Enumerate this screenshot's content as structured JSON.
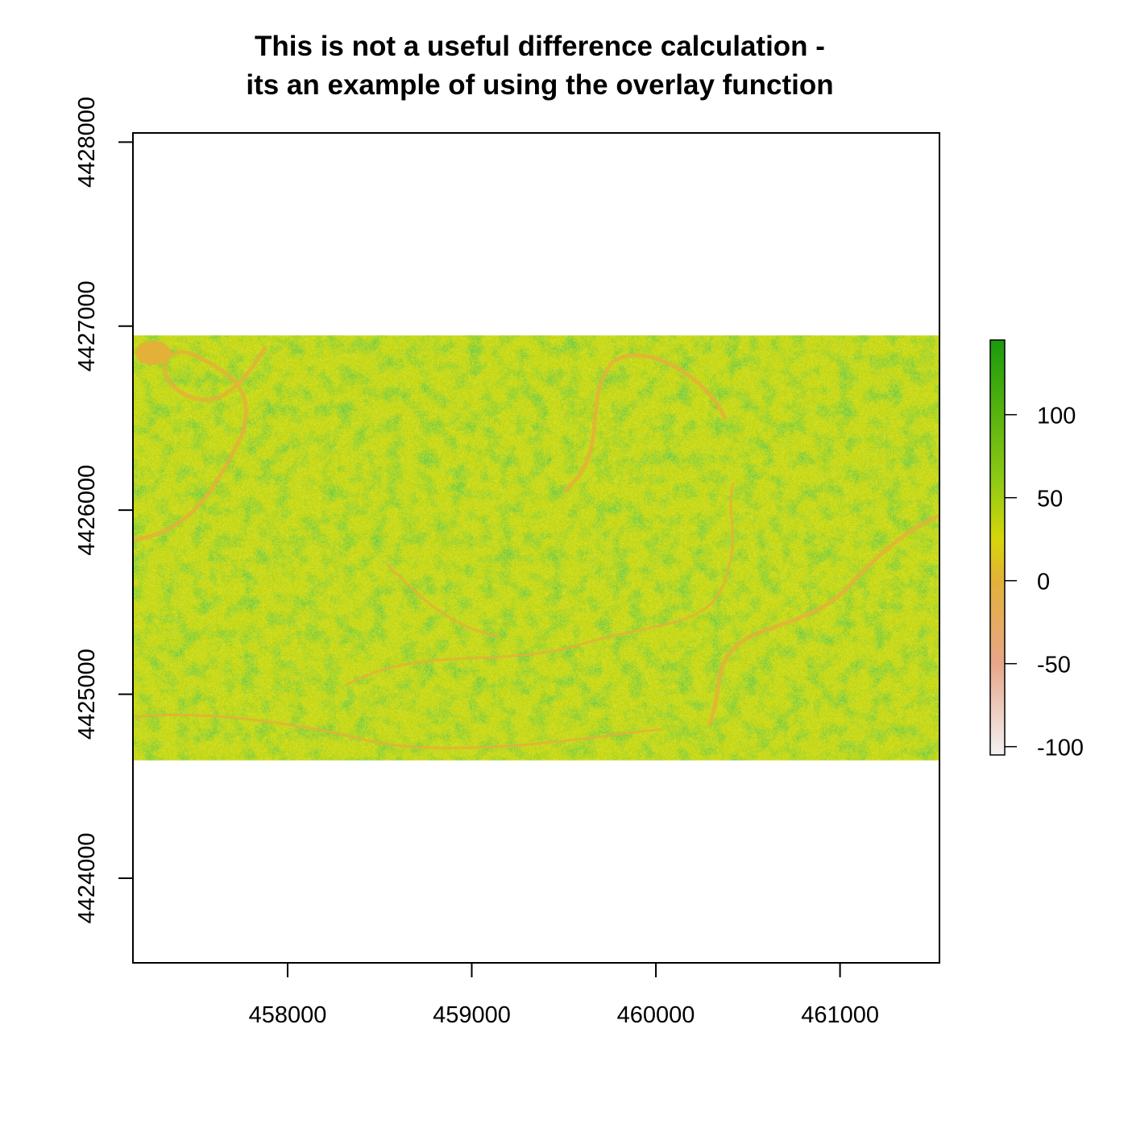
{
  "chart_data": {
    "type": "heatmap",
    "title_lines": [
      "This is not a useful difference calculation -",
      "its an example of using the overlay function"
    ],
    "xlabel": "",
    "ylabel": "",
    "xlim": [
      457160,
      461540
    ],
    "ylim": [
      4423540,
      4428050
    ],
    "raster_extent": {
      "xmin": 457160,
      "xmax": 461540,
      "ymin": 4424640,
      "ymax": 4426950
    },
    "x_ticks": [
      458000,
      459000,
      460000,
      461000
    ],
    "x_tick_labels": [
      "458000",
      "459000",
      "460000",
      "461000"
    ],
    "y_ticks": [
      4424000,
      4425000,
      4426000,
      4427000,
      4428000
    ],
    "y_tick_labels": [
      "4424000",
      "4425000",
      "4426000",
      "4427000",
      "4428000"
    ],
    "value_range": [
      -105,
      145
    ],
    "legend": {
      "placement": "right",
      "ticks": [
        100,
        50,
        0,
        -50,
        -100
      ],
      "tick_labels": [
        "100",
        "50",
        "0",
        "-50",
        "-100"
      ],
      "color_stops": [
        {
          "value": -105,
          "color": "#f2f2f2"
        },
        {
          "value": -50,
          "color": "#e8a68a"
        },
        {
          "value": 0,
          "color": "#e3b138"
        },
        {
          "value": 25,
          "color": "#d6d60a"
        },
        {
          "value": 60,
          "color": "#8fca14"
        },
        {
          "value": 145,
          "color": "#1a9a0c"
        }
      ]
    },
    "grid": false
  }
}
